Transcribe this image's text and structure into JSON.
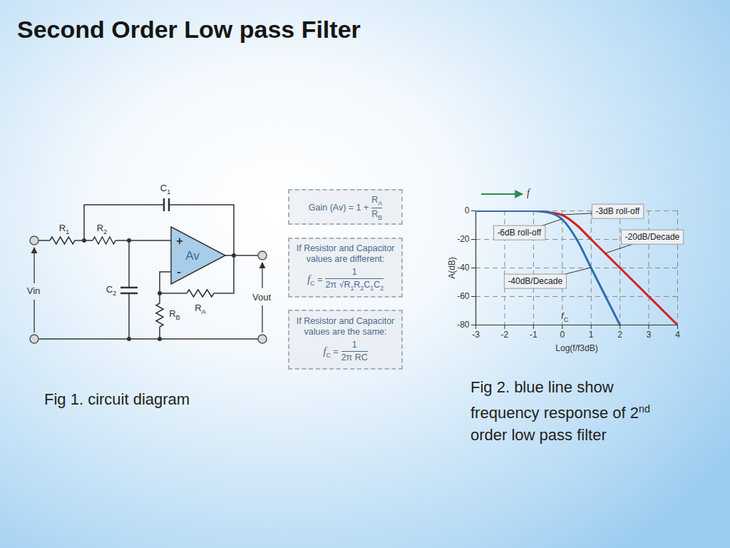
{
  "title": "Second Order Low pass Filter",
  "circuit": {
    "c1": [
      "C",
      {
        "sub": "1"
      }
    ],
    "r1": [
      "R",
      {
        "sub": "1"
      }
    ],
    "r2": [
      "R",
      {
        "sub": "2"
      }
    ],
    "c2": [
      "C",
      {
        "sub": "2"
      }
    ],
    "ra": [
      "R",
      {
        "sub": "A"
      }
    ],
    "rb": [
      "R",
      {
        "sub": "B"
      }
    ],
    "amplifier": "Av",
    "plus": "+",
    "minus": "-",
    "vin": "Vin",
    "vout": "Vout"
  },
  "formulas": [
    {
      "lhs": [
        "Gain (Av) = 1 +"
      ],
      "numerator": [
        "R",
        {
          "sub": "A"
        }
      ],
      "denominator": [
        "R",
        {
          "sub": "B"
        }
      ]
    },
    {
      "lines": [
        "If Resistor and Capacitor",
        "values are different:"
      ],
      "lhs": [
        {
          "italic": "f"
        },
        {
          "sub": "C"
        },
        " ="
      ],
      "numerator": [
        "1"
      ],
      "denominator": [
        "2π √",
        {
          "overline": [
            "R",
            {
              "sub": "1"
            },
            "R",
            {
              "sub": "2"
            },
            "C",
            {
              "sub": "1"
            },
            "C",
            {
              "sub": "2"
            }
          ]
        }
      ]
    },
    {
      "lines": [
        "If Resistor and Capacitor",
        "values are the same:"
      ],
      "lhs": [
        {
          "italic": "f"
        },
        {
          "sub": "C"
        },
        " ="
      ],
      "numerator": [
        "1"
      ],
      "denominator": [
        "2π RC"
      ]
    }
  ],
  "captions": [
    [
      "Fig 1. circuit diagram"
    ],
    [
      "Fig 2. blue line show frequency response of 2",
      {
        "sup": "nd"
      },
      " order low pass filter"
    ]
  ],
  "chart_data": {
    "type": "line",
    "xlabel": "Log(f/f3dB)",
    "ylabel": "A(dB)",
    "x": [
      -3,
      -2,
      -1,
      -0.5,
      0,
      0.5,
      1,
      2,
      3,
      4
    ],
    "series": [
      {
        "color": "#d42020",
        "values": [
          0,
          0,
          0,
          -1,
          -3,
          -10,
          -20,
          -40,
          -60,
          -80
        ]
      },
      {
        "color": "#2f6db5",
        "values": [
          0,
          0,
          0,
          -1,
          -6,
          -20,
          -40,
          -80,
          null,
          null
        ]
      }
    ],
    "xlim": [
      -3,
      4
    ],
    "ylim": [
      -80,
      0
    ],
    "xticks": [
      -3,
      -2,
      -1,
      0,
      1,
      2,
      3,
      4
    ],
    "yticks": [
      0,
      -20,
      -40,
      -60,
      -80
    ],
    "grid": true,
    "annotations": [
      {
        "text": "-3dB roll-off",
        "x": 0,
        "y": -3
      },
      {
        "text": "-6dB roll-off",
        "x": 0,
        "y": -6
      },
      {
        "text": "-20dB/Decade",
        "x": 1.5,
        "y": -30
      },
      {
        "text": "-40dB/Decade",
        "x": 1,
        "y": -40
      }
    ],
    "frequency_arrow_label": "f",
    "cutoff_label": [
      {
        "italic": "f"
      },
      {
        "sub": "C"
      }
    ]
  }
}
